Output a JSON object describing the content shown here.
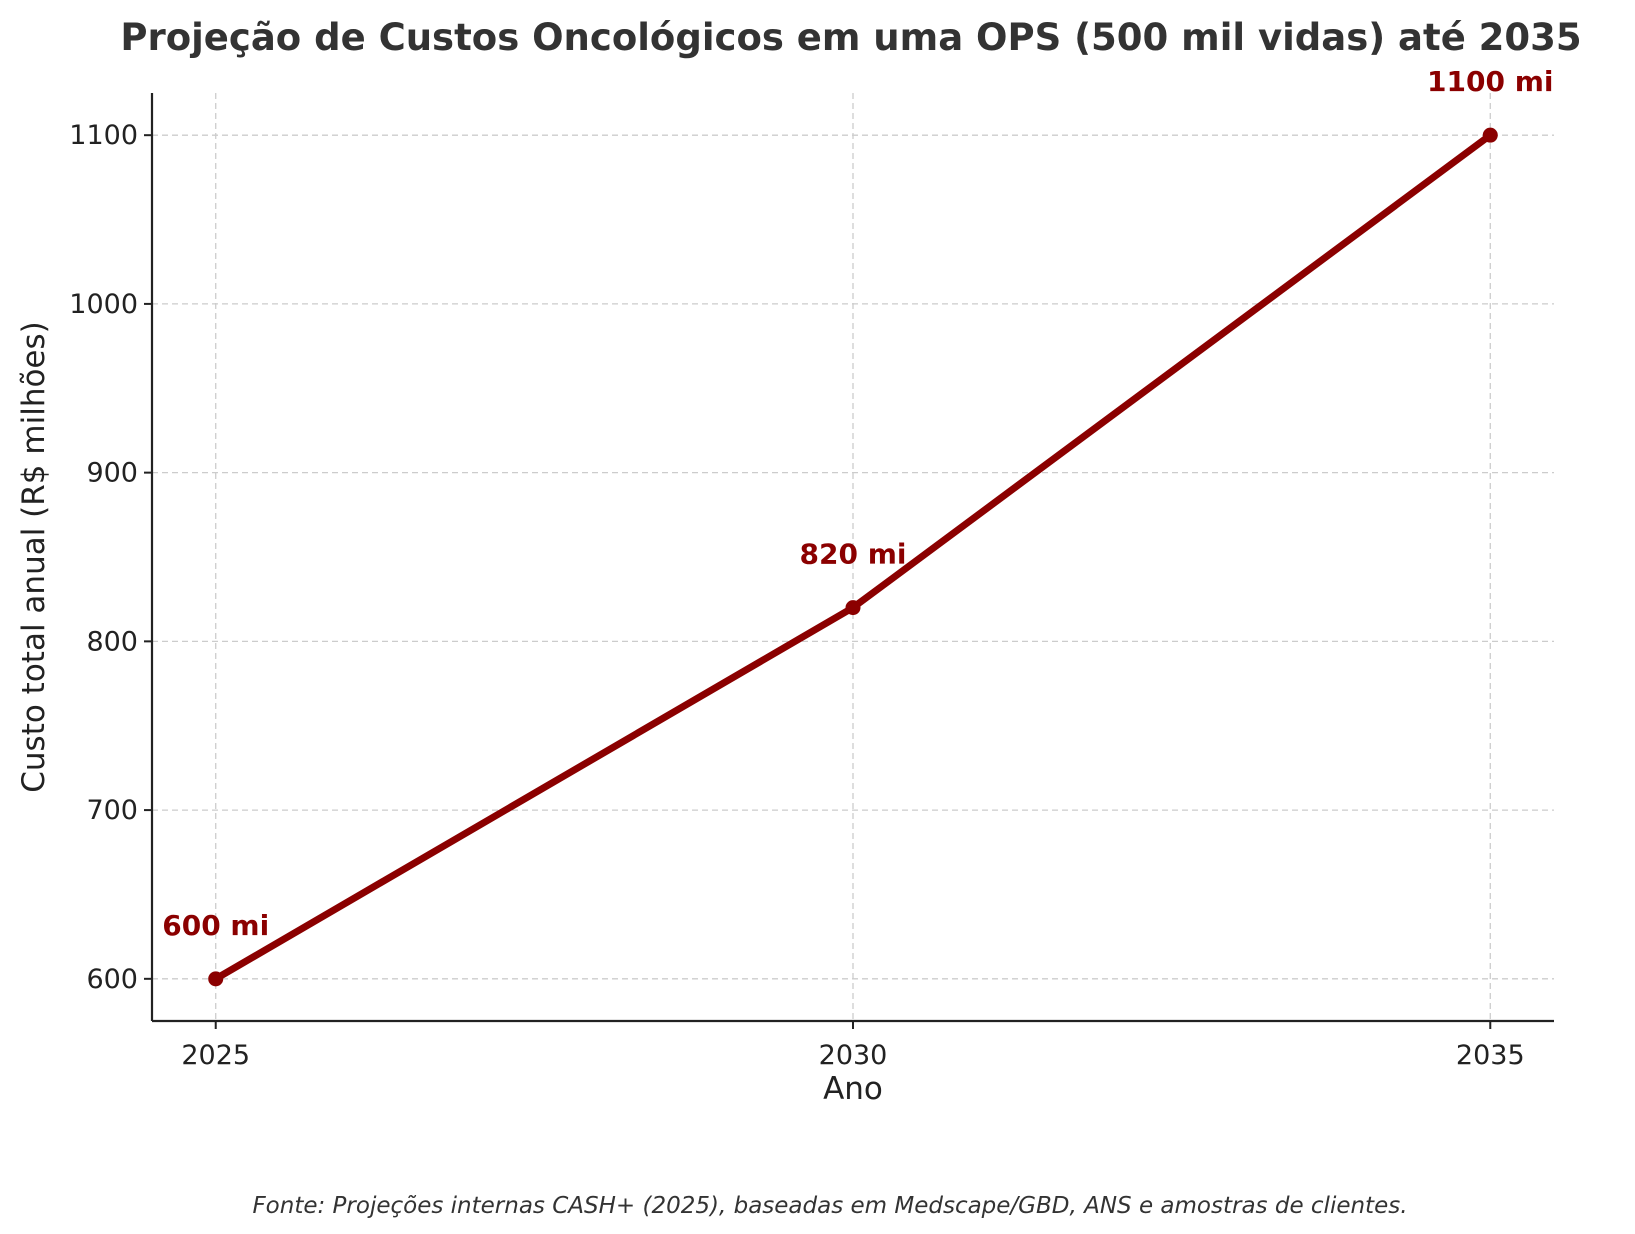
{
  "chart_data": {
    "type": "line",
    "title": "Projeção de Custos Oncológicos em uma OPS (500 mil vidas) até 2035",
    "xlabel": "Ano",
    "ylabel": "Custo total anual (R$ milhões)",
    "x": [
      2025,
      2030,
      2035
    ],
    "x_tick_labels": [
      "2025",
      "2030",
      "2035"
    ],
    "y_ticks": [
      600,
      700,
      800,
      900,
      1000,
      1100
    ],
    "y_tick_labels": [
      "600",
      "700",
      "800",
      "900",
      "1000",
      "1100"
    ],
    "xlim": [
      2024.5,
      2035.5
    ],
    "ylim": [
      575,
      1125
    ],
    "series": [
      {
        "name": "Custo total anual",
        "values": [
          600,
          820,
          1100
        ],
        "labels": [
          "600 mi",
          "820 mi",
          "1100 mi"
        ],
        "color": "#8b0000"
      }
    ],
    "grid": true,
    "source_note": "Fonte: Projeções internas CASH+ (2025), baseadas em Medscape/GBD, ANS e amostras de clientes."
  }
}
